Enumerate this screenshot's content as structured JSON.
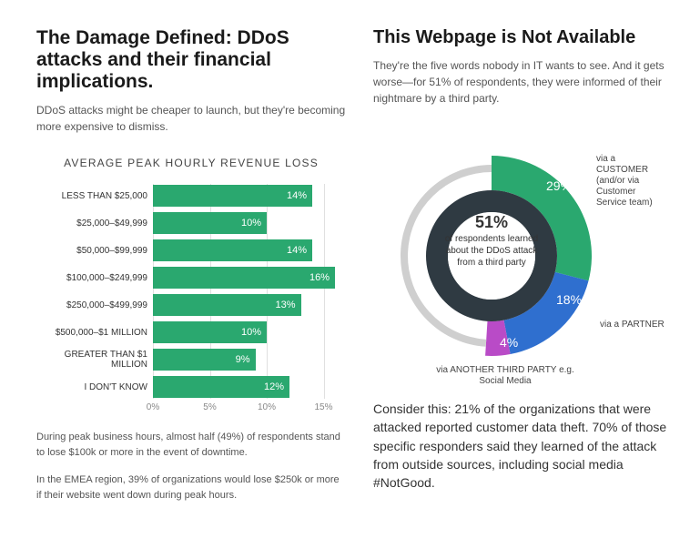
{
  "left": {
    "heading": "The Damage Defined: DDoS attacks and their financial implications.",
    "heading_fontsize": 21,
    "subtext": "DDoS attacks might be cheaper to launch, but they're becoming more expensive to dismiss.",
    "chart": {
      "type": "bar",
      "title": "AVERAGE PEAK HOURLY REVENUE LOSS",
      "xlim": [
        0,
        16
      ],
      "xticks": [
        0,
        5,
        10,
        15
      ],
      "xtick_labels": [
        "0%",
        "5%",
        "10%",
        "15%"
      ],
      "bar_color": "#2aa86f",
      "grid_color": "#e0e0e0",
      "text_color": "#ffffff",
      "categories": [
        "LESS THAN $25,000",
        "$25,000–$49,999",
        "$50,000–$99,999",
        "$100,000–$249,999",
        "$250,000–$499,999",
        "$500,000–$1 MILLION",
        "GREATER THAN $1 MILLION",
        "I DON'T KNOW"
      ],
      "values": [
        14,
        10,
        14,
        16,
        13,
        10,
        9,
        12
      ],
      "category_fontsize": 10,
      "value_fontsize": 11
    },
    "note1": "During peak business hours, almost half (49%) of respondents stand to lose $100k or more in the event of downtime.",
    "note2": "In the EMEA region, 39% of organizations would lose $250k or more if their website went down during peak hours."
  },
  "right": {
    "heading": "This Webpage is Not Available",
    "heading_fontsize": 20,
    "subtext": "They're the five words nobody in IT wants to see. And it gets worse—for 51% of respondents, they were informed of their nightmare by a third party.",
    "donut": {
      "type": "pie",
      "center_big": "51%",
      "center_text": "of respondents learned about the DDoS attack from a third party",
      "inner_bg_color": "#2f3a42",
      "empty_color": "#cfcfcf",
      "segments": [
        {
          "label": "via a CUSTOMER (and/or via Customer Service team)",
          "value": 29,
          "color": "#2aa86f"
        },
        {
          "label": "via a PARTNER",
          "value": 18,
          "color": "#2f6fcf"
        },
        {
          "label": "via ANOTHER THIRD PARTY e.g. Social Media",
          "value": 4,
          "color": "#b94bc7"
        }
      ],
      "label_fontsize": 10
    },
    "footer": "Consider this: 21% of the organizations that were attacked reported customer data theft. 70% of those specific responders said they learned of the attack from outside sources, including social media #NotGood."
  }
}
